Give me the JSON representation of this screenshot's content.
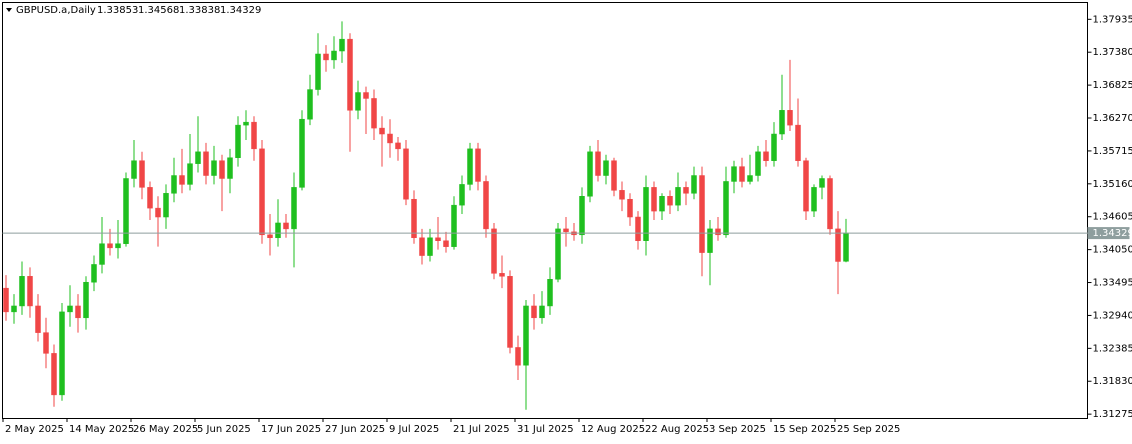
{
  "chart_data": {
    "type": "candlestick",
    "symbol": "GBPUSD.a,Daily",
    "categories": [
      "2 May 2025",
      null,
      null,
      null,
      null,
      null,
      null,
      null,
      "14 May 2025",
      null,
      null,
      null,
      null,
      null,
      null,
      null,
      "26 May 2025",
      null,
      null,
      null,
      null,
      null,
      null,
      null,
      "5 Jun 2025",
      null,
      null,
      null,
      null,
      null,
      null,
      null,
      "17 Jun 2025",
      null,
      null,
      null,
      null,
      null,
      null,
      null,
      "27 Jun 2025",
      null,
      null,
      null,
      null,
      null,
      null,
      null,
      "9 Jul 2025",
      null,
      null,
      null,
      null,
      null,
      null,
      null,
      "21 Jul 2025",
      null,
      null,
      null,
      null,
      null,
      null,
      null,
      "31 Jul 2025",
      null,
      null,
      null,
      null,
      null,
      null,
      null,
      "12 Aug 2025",
      null,
      null,
      null,
      null,
      null,
      null,
      null,
      "22 Aug 2025",
      null,
      null,
      null,
      null,
      null,
      null,
      null,
      "3 Sep 2025",
      null,
      null,
      null,
      null,
      null,
      null,
      null,
      "15 Sep 2025",
      null,
      null,
      null,
      null,
      null,
      null,
      null,
      "25 Sep 2025",
      null
    ],
    "open": [
      1.334,
      1.33,
      1.331,
      1.336,
      1.331,
      1.3265,
      1.323,
      1.316,
      1.33,
      1.331,
      1.329,
      1.335,
      1.338,
      1.3415,
      1.3408,
      1.3415,
      1.3525,
      1.3555,
      1.351,
      1.3475,
      1.346,
      1.35,
      1.353,
      1.3515,
      1.355,
      1.357,
      1.353,
      1.3555,
      1.3525,
      1.356,
      1.3615,
      1.362,
      1.3575,
      1.343,
      1.3425,
      1.345,
      1.344,
      1.351,
      1.3625,
      1.3675,
      1.3735,
      1.3725,
      1.374,
      1.376,
      1.364,
      1.367,
      1.366,
      1.361,
      1.36,
      1.3585,
      1.3575,
      1.349,
      1.3425,
      1.3395,
      1.3425,
      1.342,
      1.341,
      1.348,
      1.3515,
      1.3575,
      1.352,
      1.344,
      1.3365,
      1.336,
      1.324,
      1.321,
      1.331,
      1.329,
      1.331,
      1.3355,
      1.344,
      1.3435,
      1.343,
      1.3495,
      1.357,
      1.353,
      1.3555,
      1.3505,
      1.349,
      1.346,
      1.342,
      1.351,
      1.347,
      1.3495,
      1.348,
      1.351,
      1.35,
      1.353,
      1.34,
      1.344,
      1.343,
      1.352,
      1.3545,
      1.352,
      1.353,
      1.357,
      1.3555,
      1.36,
      1.364,
      1.3615,
      1.3555,
      1.347,
      1.351,
      1.3525,
      1.344,
      1.33853
    ],
    "high": [
      1.3362,
      1.333,
      1.3385,
      1.3375,
      1.333,
      1.329,
      1.3245,
      1.3315,
      1.3345,
      1.333,
      1.336,
      1.3395,
      1.346,
      1.344,
      1.3455,
      1.3535,
      1.359,
      1.357,
      1.352,
      1.3495,
      1.3515,
      1.356,
      1.3575,
      1.36,
      1.363,
      1.3585,
      1.358,
      1.3565,
      1.3575,
      1.363,
      1.364,
      1.363,
      1.359,
      1.3465,
      1.349,
      1.3465,
      1.3535,
      1.364,
      1.37,
      1.377,
      1.375,
      1.3765,
      1.379,
      1.377,
      1.369,
      1.368,
      1.3675,
      1.363,
      1.3625,
      1.3595,
      1.359,
      1.3505,
      1.344,
      1.344,
      1.346,
      1.3435,
      1.3495,
      1.353,
      1.3585,
      1.3585,
      1.353,
      1.345,
      1.3395,
      1.337,
      1.326,
      1.332,
      1.333,
      1.3335,
      1.3375,
      1.345,
      1.346,
      1.345,
      1.351,
      1.358,
      1.359,
      1.3565,
      1.356,
      1.352,
      1.35,
      1.347,
      1.353,
      1.352,
      1.35,
      1.3505,
      1.3535,
      1.352,
      1.3545,
      1.3545,
      1.3455,
      1.346,
      1.3545,
      1.3555,
      1.356,
      1.3565,
      1.358,
      1.359,
      1.362,
      1.37,
      1.3725,
      1.366,
      1.356,
      1.3515,
      1.353,
      1.353,
      1.347,
      1.34568
    ],
    "low": [
      1.3285,
      1.328,
      1.3295,
      1.329,
      1.325,
      1.3205,
      1.314,
      1.315,
      1.3275,
      1.3265,
      1.327,
      1.3335,
      1.3365,
      1.3395,
      1.339,
      1.341,
      1.351,
      1.349,
      1.3455,
      1.341,
      1.344,
      1.3485,
      1.35,
      1.3505,
      1.3535,
      1.3515,
      1.3515,
      1.347,
      1.35,
      1.3545,
      1.359,
      1.3555,
      1.3415,
      1.3395,
      1.341,
      1.3425,
      1.3375,
      1.3505,
      1.3615,
      1.3665,
      1.3705,
      1.371,
      1.372,
      1.357,
      1.3625,
      1.36,
      1.359,
      1.3545,
      1.356,
      1.3555,
      1.348,
      1.3415,
      1.338,
      1.3385,
      1.3405,
      1.34,
      1.3405,
      1.3465,
      1.3505,
      1.3505,
      1.3425,
      1.3355,
      1.334,
      1.323,
      1.3185,
      1.3135,
      1.327,
      1.328,
      1.3295,
      1.335,
      1.341,
      1.342,
      1.3415,
      1.3485,
      1.352,
      1.3515,
      1.3495,
      1.347,
      1.3445,
      1.3405,
      1.3395,
      1.3455,
      1.3455,
      1.3465,
      1.347,
      1.348,
      1.349,
      1.336,
      1.3345,
      1.342,
      1.3425,
      1.35,
      1.351,
      1.3515,
      1.352,
      1.3545,
      1.3545,
      1.359,
      1.3605,
      1.3545,
      1.3455,
      1.346,
      1.349,
      1.343,
      1.333,
      1.33838
    ],
    "close": [
      1.33,
      1.331,
      1.336,
      1.331,
      1.3265,
      1.323,
      1.316,
      1.33,
      1.331,
      1.329,
      1.335,
      1.338,
      1.3415,
      1.3408,
      1.3415,
      1.3525,
      1.3555,
      1.351,
      1.3475,
      1.346,
      1.35,
      1.353,
      1.3515,
      1.355,
      1.357,
      1.353,
      1.3555,
      1.3525,
      1.356,
      1.3615,
      1.362,
      1.3575,
      1.343,
      1.3425,
      1.345,
      1.344,
      1.351,
      1.3625,
      1.3675,
      1.3735,
      1.3725,
      1.374,
      1.376,
      1.364,
      1.367,
      1.366,
      1.361,
      1.36,
      1.3585,
      1.3575,
      1.349,
      1.3425,
      1.3395,
      1.3425,
      1.342,
      1.341,
      1.348,
      1.3515,
      1.3575,
      1.352,
      1.344,
      1.3365,
      1.336,
      1.324,
      1.321,
      1.331,
      1.329,
      1.331,
      1.3355,
      1.344,
      1.3435,
      1.343,
      1.3495,
      1.357,
      1.353,
      1.3555,
      1.3505,
      1.349,
      1.346,
      1.342,
      1.351,
      1.347,
      1.3495,
      1.348,
      1.351,
      1.35,
      1.353,
      1.34,
      1.344,
      1.343,
      1.352,
      1.3545,
      1.352,
      1.353,
      1.357,
      1.3555,
      1.36,
      1.364,
      1.3615,
      1.3555,
      1.347,
      1.351,
      1.3525,
      1.344,
      1.3385,
      1.34329
    ],
    "up_color": "#1fbf1f",
    "down_color": "#f04646",
    "price_line_color": "#8e9e9e",
    "ylim": [
      1.3121,
      1.3821
    ],
    "yticks": [
      1.37935,
      {
        "value": 1.3738,
        "label": "1.37380"
      },
      1.36825,
      {
        "value": 1.3627,
        "label": "1.36270"
      },
      1.35715,
      {
        "value": 1.3516,
        "label": "1.35160"
      },
      1.34605,
      {
        "value": 1.3405,
        "label": "1.34050"
      },
      1.33495,
      {
        "value": 1.3294,
        "label": "1.32940"
      },
      1.32385,
      {
        "value": 1.3183,
        "label": "1.31830"
      },
      1.31275
    ]
  }
}
